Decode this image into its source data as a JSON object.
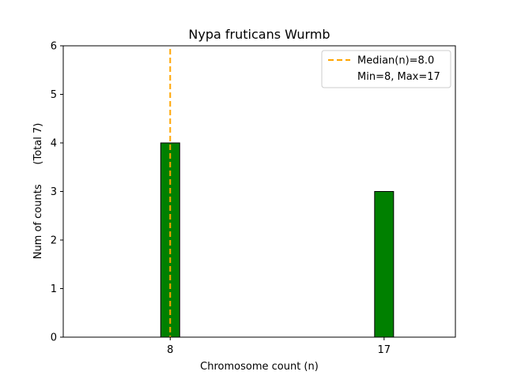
{
  "chart_data": {
    "type": "bar",
    "title": "Nypa fruticans Wurmb",
    "xlabel": "Chromosome count (n)",
    "ylabel": "Num of counts      (Total 7)",
    "x": [
      8,
      17
    ],
    "values": [
      4,
      3
    ],
    "xlim": [
      3.5,
      20
    ],
    "ylim": [
      0,
      6
    ],
    "yticks": [
      0,
      1,
      2,
      3,
      4,
      5,
      6
    ],
    "xticks": [
      8,
      17
    ],
    "bar_color": "#008000",
    "median": 8.0,
    "median_color": "#FFA500",
    "legend": {
      "placement": "top-right",
      "entries": [
        "Median(n)=8.0",
        "Min=8, Max=17"
      ]
    },
    "grid": false
  }
}
